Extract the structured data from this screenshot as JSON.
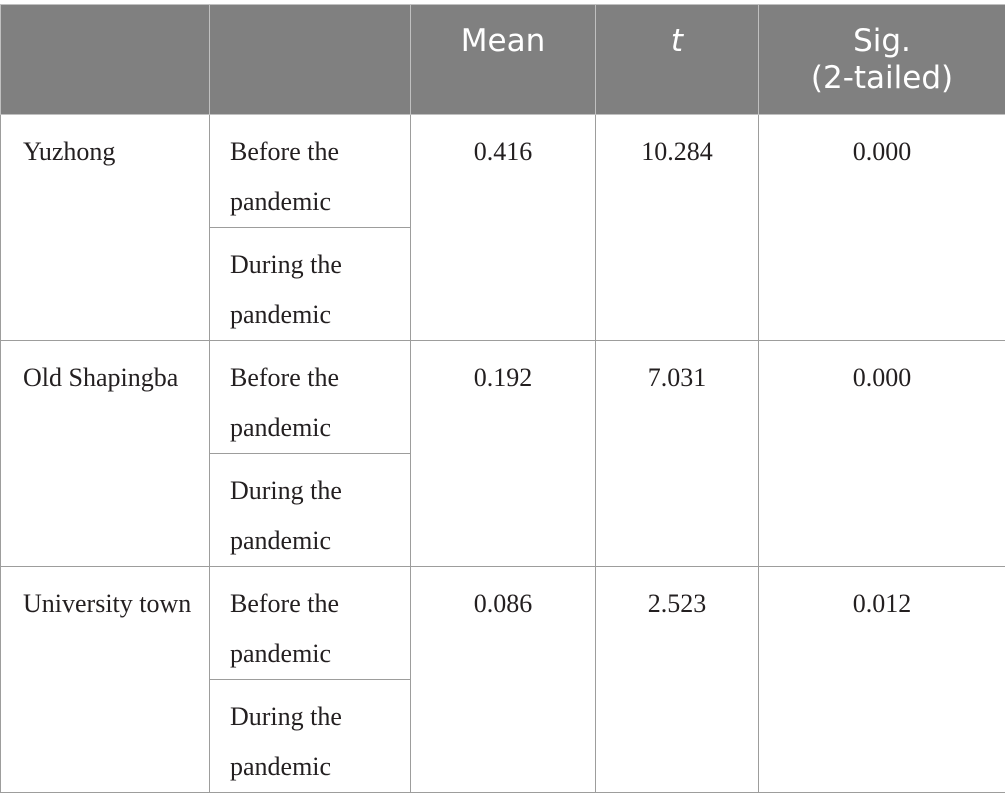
{
  "table": {
    "headers": {
      "blank_1": "",
      "blank_2": "",
      "mean": "Mean",
      "t": "t",
      "sig": "Sig.",
      "sig_sub": "(2-tailed)"
    },
    "rows": [
      {
        "group": "Yuzhong",
        "period_before": "Before the pandemic",
        "period_during": "During the pandemic",
        "mean": "0.416",
        "t": "10.284",
        "sig": "0.000"
      },
      {
        "group": "Old Shapingba",
        "period_before": "Before the pandemic",
        "period_during": "During the pandemic",
        "mean": "0.192",
        "t": "7.031",
        "sig": "0.000"
      },
      {
        "group": "University town",
        "period_before": "Before the pandemic",
        "period_during": "During the pandemic",
        "mean": "0.086",
        "t": "2.523",
        "sig": "0.012"
      }
    ]
  }
}
